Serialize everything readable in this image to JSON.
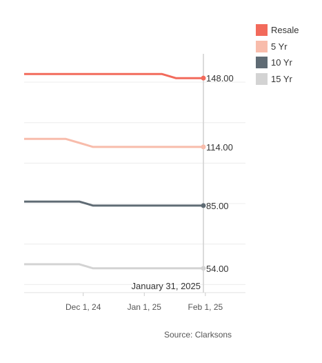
{
  "chart_data": {
    "type": "line",
    "x": [
      "2024-11-01",
      "2024-11-08",
      "2024-11-15",
      "2024-11-22",
      "2024-11-29",
      "2024-12-06",
      "2024-12-13",
      "2024-12-20",
      "2024-12-27",
      "2025-01-03",
      "2025-01-10",
      "2025-01-17",
      "2025-01-24",
      "2025-01-31"
    ],
    "x_ticks": [
      "2024-12-01",
      "2025-01-01",
      "2025-02-01"
    ],
    "x_tick_labels": [
      "Dec 1, 24",
      "Jan 1, 25",
      "Feb 1, 25"
    ],
    "ylim": [
      42,
      160
    ],
    "grid": true,
    "legend_position": "top-right",
    "series": [
      {
        "name": "Resale",
        "color": "#f26a5b",
        "values": [
          150,
          150,
          150,
          150,
          150,
          150,
          150,
          150,
          150,
          150,
          150,
          148,
          148,
          148
        ],
        "end_label": "148.00"
      },
      {
        "name": "5 Yr",
        "color": "#f8bcab",
        "values": [
          118,
          118,
          118,
          118,
          116,
          114,
          114,
          114,
          114,
          114,
          114,
          114,
          114,
          114
        ],
        "end_label": "114.00"
      },
      {
        "name": "10 Yr",
        "color": "#5f6b74",
        "values": [
          87,
          87,
          87,
          87,
          87,
          85,
          85,
          85,
          85,
          85,
          85,
          85,
          85,
          85
        ],
        "end_label": "85.00"
      },
      {
        "name": "15 Yr",
        "color": "#d3d3d3",
        "values": [
          56,
          56,
          56,
          56,
          56,
          54,
          54,
          54,
          54,
          54,
          54,
          54,
          54,
          54
        ],
        "end_label": "54.00"
      }
    ],
    "hover_date": "January 31, 2025"
  },
  "source": "Source: Clarksons"
}
